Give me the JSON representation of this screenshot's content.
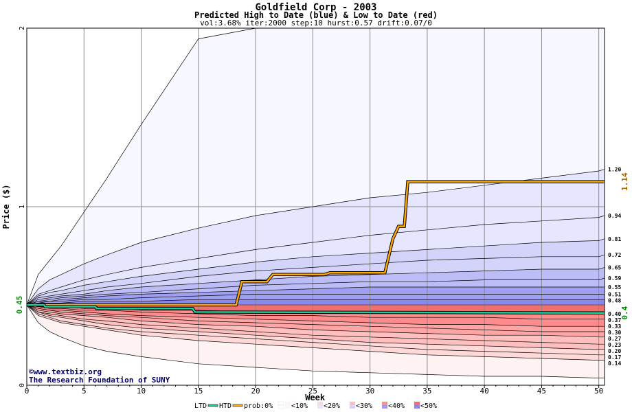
{
  "title": "Goldfield Corp - 2003",
  "subtitle": "Predicted High to Date (blue) &  Low to Date (red)",
  "params": "vol:3.68% iter:2000 step:10 hurst:0.57 drift:0.07/0",
  "watermark": {
    "line1": "©www.textbiz.org",
    "line2": "The Research Foundation of SUNY"
  },
  "colors": {
    "ltd": "#22cc99",
    "htd": "#ffaa00",
    "blue_bands": [
      "#f7f7ff",
      "#e6e6ff",
      "#d4d4fb",
      "#bcbcf7",
      "#a0a0f2",
      "#8888ee"
    ],
    "red_bands": [
      "#fff2f2",
      "#ffd8d8",
      "#ffbfbf",
      "#ffa5a5",
      "#ff8c8c",
      "#f07070"
    ],
    "last_price_label": "#008800",
    "high_label": "#aa6600"
  },
  "chart_data": {
    "type": "area",
    "xlabel": "Week",
    "ylabel": "Price ($)",
    "xlim": [
      0,
      50.5
    ],
    "ylim": [
      0,
      2
    ],
    "xticks": [
      "0",
      "5",
      "10",
      "15",
      "20",
      "25",
      "30",
      "35",
      "40",
      "45",
      "50"
    ],
    "yticks": [
      "0",
      "1",
      "2"
    ],
    "start_price": 0.45,
    "start_price_label": "0.45",
    "grid": true,
    "x": [
      0,
      1,
      2,
      3,
      5,
      7,
      10,
      15,
      20,
      25,
      30,
      35,
      40,
      45,
      50,
      50.5
    ],
    "upper_quantiles": [
      {
        "label": "2",
        "values": [
          0.45,
          0.62,
          0.7,
          0.78,
          0.97,
          1.16,
          1.46,
          1.94,
          2.0,
          2.0,
          2.0,
          2.0,
          2.0,
          2.0,
          2.0,
          2.0
        ]
      },
      {
        "label": "1.20",
        "values": [
          0.45,
          0.54,
          0.59,
          0.62,
          0.68,
          0.73,
          0.8,
          0.88,
          0.95,
          1.0,
          1.05,
          1.08,
          1.12,
          1.16,
          1.2,
          1.21
        ]
      },
      {
        "label": "0.94",
        "values": [
          0.45,
          0.51,
          0.53,
          0.55,
          0.59,
          0.62,
          0.66,
          0.71,
          0.76,
          0.8,
          0.84,
          0.87,
          0.9,
          0.92,
          0.94,
          0.95
        ]
      },
      {
        "label": "0.81",
        "values": [
          0.45,
          0.5,
          0.52,
          0.53,
          0.56,
          0.58,
          0.61,
          0.65,
          0.69,
          0.72,
          0.74,
          0.76,
          0.78,
          0.8,
          0.81,
          0.82
        ]
      },
      {
        "label": "0.72",
        "values": [
          0.45,
          0.49,
          0.5,
          0.51,
          0.53,
          0.55,
          0.57,
          0.61,
          0.64,
          0.66,
          0.68,
          0.7,
          0.71,
          0.72,
          0.72,
          0.73
        ]
      },
      {
        "label": "0.65",
        "values": [
          0.45,
          0.48,
          0.49,
          0.5,
          0.51,
          0.53,
          0.55,
          0.57,
          0.59,
          0.61,
          0.62,
          0.63,
          0.64,
          0.65,
          0.65,
          0.66
        ]
      },
      {
        "label": "0.59",
        "values": [
          0.45,
          0.47,
          0.48,
          0.49,
          0.5,
          0.51,
          0.52,
          0.54,
          0.56,
          0.57,
          0.58,
          0.58,
          0.59,
          0.59,
          0.59,
          0.6
        ]
      },
      {
        "label": "0.55",
        "values": [
          0.45,
          0.47,
          0.47,
          0.48,
          0.49,
          0.5,
          0.51,
          0.52,
          0.53,
          0.54,
          0.55,
          0.55,
          0.55,
          0.55,
          0.55,
          0.55
        ]
      },
      {
        "label": "0.51",
        "values": [
          0.45,
          0.46,
          0.47,
          0.47,
          0.48,
          0.48,
          0.49,
          0.5,
          0.51,
          0.51,
          0.51,
          0.51,
          0.51,
          0.51,
          0.51,
          0.51
        ]
      },
      {
        "label": "0.48",
        "values": [
          0.45,
          0.46,
          0.46,
          0.46,
          0.47,
          0.47,
          0.47,
          0.48,
          0.48,
          0.48,
          0.48,
          0.48,
          0.48,
          0.48,
          0.48,
          0.48
        ]
      }
    ],
    "lower_quantiles": [
      {
        "label": "0.40",
        "values": [
          0.45,
          0.44,
          0.44,
          0.44,
          0.43,
          0.43,
          0.42,
          0.42,
          0.41,
          0.41,
          0.41,
          0.41,
          0.4,
          0.4,
          0.4,
          0.4
        ]
      },
      {
        "label": "0.37",
        "values": [
          0.45,
          0.44,
          0.43,
          0.43,
          0.42,
          0.42,
          0.41,
          0.4,
          0.39,
          0.39,
          0.38,
          0.38,
          0.38,
          0.37,
          0.37,
          0.37
        ]
      },
      {
        "label": "0.33",
        "values": [
          0.45,
          0.43,
          0.42,
          0.42,
          0.41,
          0.4,
          0.39,
          0.38,
          0.37,
          0.36,
          0.35,
          0.34,
          0.34,
          0.33,
          0.33,
          0.33
        ]
      },
      {
        "label": "0.30",
        "values": [
          0.45,
          0.43,
          0.42,
          0.41,
          0.4,
          0.39,
          0.38,
          0.36,
          0.35,
          0.34,
          0.33,
          0.32,
          0.31,
          0.3,
          0.3,
          0.3
        ]
      },
      {
        "label": "0.27",
        "values": [
          0.45,
          0.42,
          0.41,
          0.4,
          0.39,
          0.38,
          0.36,
          0.34,
          0.33,
          0.31,
          0.3,
          0.29,
          0.28,
          0.28,
          0.27,
          0.27
        ]
      },
      {
        "label": "0.23",
        "values": [
          0.45,
          0.41,
          0.4,
          0.39,
          0.37,
          0.36,
          0.34,
          0.32,
          0.3,
          0.28,
          0.27,
          0.26,
          0.25,
          0.24,
          0.23,
          0.23
        ]
      },
      {
        "label": "0.20",
        "values": [
          0.45,
          0.41,
          0.39,
          0.38,
          0.36,
          0.34,
          0.32,
          0.3,
          0.28,
          0.26,
          0.24,
          0.23,
          0.22,
          0.21,
          0.2,
          0.2
        ]
      },
      {
        "label": "0.17",
        "values": [
          0.45,
          0.4,
          0.38,
          0.36,
          0.34,
          0.32,
          0.3,
          0.28,
          0.26,
          0.24,
          0.22,
          0.2,
          0.19,
          0.18,
          0.17,
          0.17
        ]
      },
      {
        "label": "0.14",
        "values": [
          0.45,
          0.39,
          0.37,
          0.35,
          0.33,
          0.31,
          0.28,
          0.25,
          0.23,
          0.21,
          0.19,
          0.17,
          0.16,
          0.15,
          0.14,
          0.14
        ]
      },
      {
        "label": "",
        "values": [
          0.45,
          0.35,
          0.3,
          0.27,
          0.22,
          0.19,
          0.16,
          0.12,
          0.1,
          0.08,
          0.07,
          0.06,
          0.05,
          0.05,
          0.04,
          0.04
        ]
      }
    ],
    "series": [
      {
        "name": "HTD",
        "points": [
          [
            0,
            0.45
          ],
          [
            18.3,
            0.45
          ],
          [
            18.8,
            0.58
          ],
          [
            21,
            0.58
          ],
          [
            21.5,
            0.62
          ],
          [
            26,
            0.62
          ],
          [
            26.5,
            0.63
          ],
          [
            31.3,
            0.63
          ],
          [
            32,
            0.82
          ],
          [
            32.5,
            0.89
          ],
          [
            33,
            0.89
          ],
          [
            33.3,
            1.14
          ],
          [
            50.5,
            1.14
          ]
        ]
      },
      {
        "name": "LTD",
        "points": [
          [
            0,
            0.45
          ],
          [
            1.5,
            0.45
          ],
          [
            1.6,
            0.44
          ],
          [
            6,
            0.44
          ],
          [
            6.1,
            0.43
          ],
          [
            14.5,
            0.43
          ],
          [
            14.7,
            0.41
          ],
          [
            50.5,
            0.405
          ]
        ]
      }
    ],
    "reference_lines": [
      {
        "label": "0.45",
        "value": 0.45
      },
      {
        "label": "1.14",
        "value": 1.14
      },
      {
        "label": "0.4",
        "value": 0.405
      }
    ],
    "legend": {
      "position": "bottom",
      "ltd_label": "LTD",
      "htd_label": "HTD",
      "prob_label": "prob:0%",
      "items": [
        "<10%",
        "<20%",
        "<30%",
        "<40%",
        "<50%"
      ]
    }
  }
}
